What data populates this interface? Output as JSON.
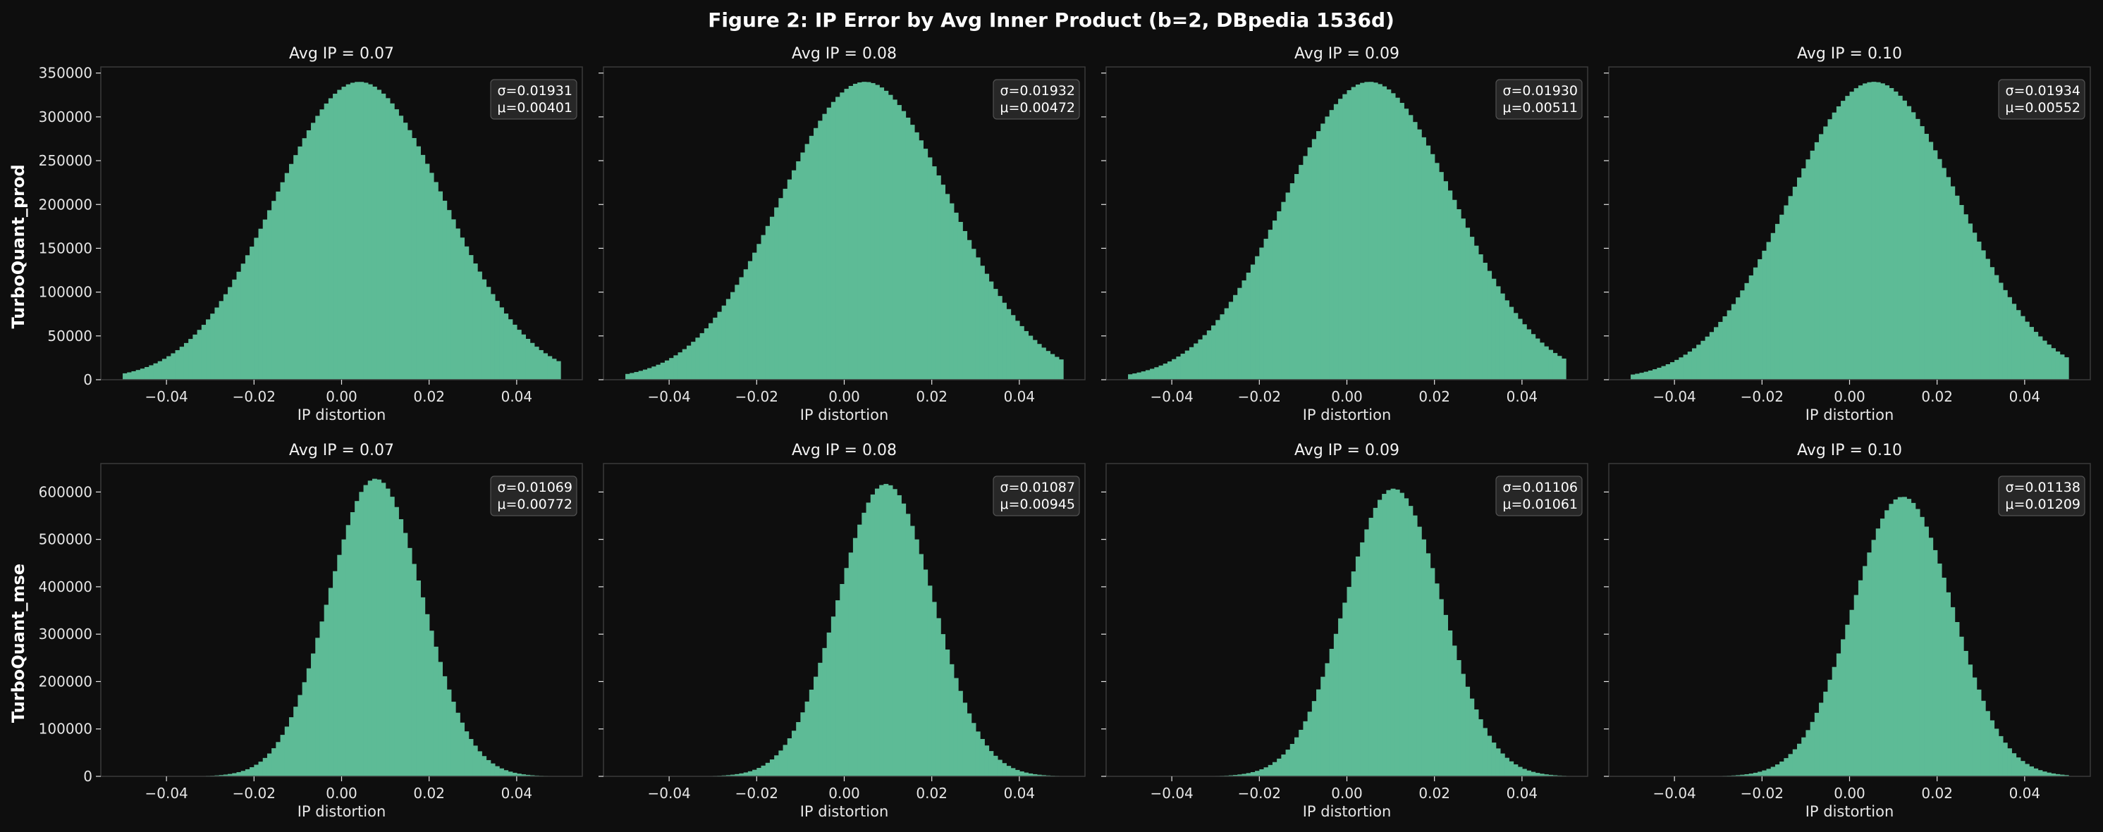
{
  "title": "Figure 2: IP Error by Avg Inner Product (b=2, DBpedia 1536d)",
  "colors": {
    "background": "#0e0e0e",
    "bar": "#5dbb96",
    "spine": "#3a3a3a",
    "text": "#e6e6e6",
    "stat_box": "#2a2a2a"
  },
  "row_labels": [
    "TurboQuant_prod",
    "TurboQuant_mse"
  ],
  "chart_data": [
    {
      "type": "bar",
      "row": 0,
      "col": 0,
      "title": "Avg IP = 0.07",
      "xlabel": "IP distortion",
      "ylabel": "TurboQuant_prod",
      "xlim": [
        -0.055,
        0.055
      ],
      "ylim": [
        0,
        357000
      ],
      "xticks": [
        -0.04,
        -0.02,
        0.0,
        0.02,
        0.04
      ],
      "yticks": [
        0,
        50000,
        100000,
        150000,
        200000,
        250000,
        300000,
        350000
      ],
      "sigma": 0.01931,
      "mu": 0.00401,
      "peak": 340000,
      "bins": 100,
      "range": [
        -0.05,
        0.05
      ],
      "stats": [
        "σ=0.01931",
        "μ=0.00401"
      ],
      "xtick_labels": [
        "−0.04",
        "−0.02",
        "0.00",
        "0.02",
        "0.04"
      ],
      "ytick_labels": [
        "0",
        "50000",
        "100000",
        "150000",
        "200000",
        "250000",
        "300000",
        "350000"
      ]
    },
    {
      "type": "bar",
      "row": 0,
      "col": 1,
      "title": "Avg IP = 0.08",
      "xlabel": "IP distortion",
      "xlim": [
        -0.055,
        0.055
      ],
      "ylim": [
        0,
        357000
      ],
      "xticks": [
        -0.04,
        -0.02,
        0.0,
        0.02,
        0.04
      ],
      "sigma": 0.01932,
      "mu": 0.00472,
      "peak": 340000,
      "bins": 100,
      "range": [
        -0.05,
        0.05
      ],
      "stats": [
        "σ=0.01932",
        "μ=0.00472"
      ],
      "xtick_labels": [
        "−0.04",
        "−0.02",
        "0.00",
        "0.02",
        "0.04"
      ]
    },
    {
      "type": "bar",
      "row": 0,
      "col": 2,
      "title": "Avg IP = 0.09",
      "xlabel": "IP distortion",
      "xlim": [
        -0.055,
        0.055
      ],
      "ylim": [
        0,
        357000
      ],
      "xticks": [
        -0.04,
        -0.02,
        0.0,
        0.02,
        0.04
      ],
      "sigma": 0.0193,
      "mu": 0.00511,
      "peak": 340000,
      "bins": 100,
      "range": [
        -0.05,
        0.05
      ],
      "stats": [
        "σ=0.01930",
        "μ=0.00511"
      ],
      "xtick_labels": [
        "−0.04",
        "−0.02",
        "0.00",
        "0.02",
        "0.04"
      ]
    },
    {
      "type": "bar",
      "row": 0,
      "col": 3,
      "title": "Avg IP = 0.10",
      "xlabel": "IP distortion",
      "xlim": [
        -0.055,
        0.055
      ],
      "ylim": [
        0,
        357000
      ],
      "xticks": [
        -0.04,
        -0.02,
        0.0,
        0.02,
        0.04
      ],
      "sigma": 0.01934,
      "mu": 0.00552,
      "peak": 340000,
      "bins": 100,
      "range": [
        -0.05,
        0.05
      ],
      "stats": [
        "σ=0.01934",
        "μ=0.00552"
      ],
      "xtick_labels": [
        "−0.04",
        "−0.02",
        "0.00",
        "0.02",
        "0.04"
      ]
    },
    {
      "type": "bar",
      "row": 1,
      "col": 0,
      "title": "Avg IP = 0.07",
      "xlabel": "IP distortion",
      "ylabel": "TurboQuant_mse",
      "xlim": [
        -0.055,
        0.055
      ],
      "ylim": [
        0,
        660000
      ],
      "xticks": [
        -0.04,
        -0.02,
        0.0,
        0.02,
        0.04
      ],
      "yticks": [
        0,
        100000,
        200000,
        300000,
        400000,
        500000,
        600000
      ],
      "sigma": 0.01069,
      "mu": 0.00772,
      "peak": 628000,
      "bins": 100,
      "range": [
        -0.05,
        0.05
      ],
      "stats": [
        "σ=0.01069",
        "μ=0.00772"
      ],
      "xtick_labels": [
        "−0.04",
        "−0.02",
        "0.00",
        "0.02",
        "0.04"
      ],
      "ytick_labels": [
        "0",
        "100000",
        "200000",
        "300000",
        "400000",
        "500000",
        "600000"
      ]
    },
    {
      "type": "bar",
      "row": 1,
      "col": 1,
      "title": "Avg IP = 0.08",
      "xlabel": "IP distortion",
      "xlim": [
        -0.055,
        0.055
      ],
      "ylim": [
        0,
        660000
      ],
      "xticks": [
        -0.04,
        -0.02,
        0.0,
        0.02,
        0.04
      ],
      "sigma": 0.01087,
      "mu": 0.00945,
      "peak": 617000,
      "bins": 100,
      "range": [
        -0.05,
        0.05
      ],
      "stats": [
        "σ=0.01087",
        "μ=0.00945"
      ],
      "xtick_labels": [
        "−0.04",
        "−0.02",
        "0.00",
        "0.02",
        "0.04"
      ]
    },
    {
      "type": "bar",
      "row": 1,
      "col": 2,
      "title": "Avg IP = 0.09",
      "xlabel": "IP distortion",
      "xlim": [
        -0.055,
        0.055
      ],
      "ylim": [
        0,
        660000
      ],
      "xticks": [
        -0.04,
        -0.02,
        0.0,
        0.02,
        0.04
      ],
      "sigma": 0.01106,
      "mu": 0.01061,
      "peak": 607000,
      "bins": 100,
      "range": [
        -0.05,
        0.05
      ],
      "stats": [
        "σ=0.01106",
        "μ=0.01061"
      ],
      "xtick_labels": [
        "−0.04",
        "−0.02",
        "0.00",
        "0.02",
        "0.04"
      ]
    },
    {
      "type": "bar",
      "row": 1,
      "col": 3,
      "title": "Avg IP = 0.10",
      "xlabel": "IP distortion",
      "xlim": [
        -0.055,
        0.055
      ],
      "ylim": [
        0,
        660000
      ],
      "xticks": [
        -0.04,
        -0.02,
        0.0,
        0.02,
        0.04
      ],
      "sigma": 0.01138,
      "mu": 0.01209,
      "peak": 590000,
      "bins": 100,
      "range": [
        -0.05,
        0.05
      ],
      "stats": [
        "σ=0.01138",
        "μ=0.01209"
      ],
      "xtick_labels": [
        "−0.04",
        "−0.02",
        "0.00",
        "0.02",
        "0.04"
      ]
    }
  ]
}
